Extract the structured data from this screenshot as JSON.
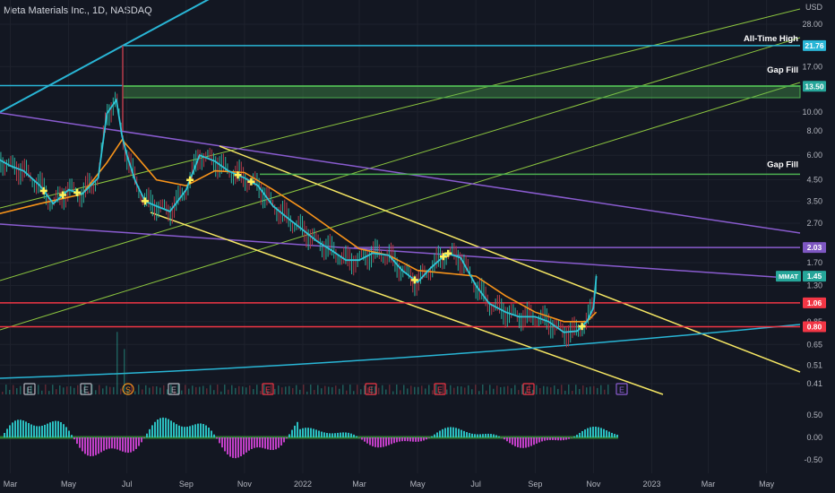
{
  "title": "Meta Materials Inc., 1D, NASDAQ",
  "colors": {
    "background": "#131722",
    "axis_text": "#b2b5be",
    "price_line": "#2ec4d6",
    "ma_line": "#f7931a",
    "candles_up": "#2db3a0",
    "candles_down": "#b73b4a",
    "yellow_channel": "#f5e663",
    "purple_line": "#8a5cd0",
    "green_fan": "#8cc63f",
    "cyan_line": "#29b6d6",
    "red_line": "#f23645",
    "hist_pos": "#2bbfc0",
    "hist_neg": "#c13fc7"
  },
  "chart_data": [
    {
      "type": "line",
      "title": "Meta Materials Inc., 1D, NASDAQ",
      "y_unit": "USD",
      "scale": "log",
      "ylim": [
        0.38,
        36
      ],
      "x_ticks": [
        "Mar",
        "May",
        "Jul",
        "Sep",
        "Nov",
        "2022",
        "Mar",
        "May",
        "Jul",
        "Sep",
        "Nov",
        "2023",
        "Mar",
        "May"
      ],
      "y_ticks": [
        28.0,
        17.0,
        10.0,
        8.0,
        6.0,
        4.5,
        3.5,
        2.7,
        1.7,
        1.3,
        0.85,
        0.65,
        0.51,
        0.41
      ],
      "x_labels_months": [
        "2021-03-01",
        "2021-05-01",
        "2021-07-01",
        "2021-09-01",
        "2021-11-01",
        "2022-01-01",
        "2022-03-01",
        "2022-05-01",
        "2022-07-01",
        "2022-09-01",
        "2022-11-01",
        "2023-01-01",
        "2023-03-01",
        "2023-05-01"
      ],
      "series": [
        {
          "x": [
            "2021-02-15",
            "2021-03-01",
            "2021-03-15",
            "2021-04-01",
            "2021-04-15",
            "2021-05-01",
            "2021-05-15",
            "2021-06-01",
            "2021-06-10",
            "2021-06-20",
            "2021-06-26",
            "2021-07-01",
            "2021-07-10",
            "2021-07-20",
            "2021-08-01",
            "2021-08-15",
            "2021-09-01",
            "2021-09-15",
            "2021-10-01",
            "2021-10-15",
            "2021-11-01",
            "2021-11-15",
            "2021-12-01",
            "2021-12-15",
            "2022-01-01",
            "2022-01-15",
            "2022-02-01",
            "2022-02-15",
            "2022-03-01",
            "2022-03-15",
            "2022-04-01",
            "2022-04-15",
            "2022-05-01",
            "2022-05-15",
            "2022-06-01",
            "2022-06-15",
            "2022-07-01",
            "2022-07-15",
            "2022-08-01",
            "2022-08-15",
            "2022-09-01",
            "2022-09-15",
            "2022-10-01",
            "2022-10-15",
            "2022-10-25",
            "2022-11-01",
            "2022-11-04"
          ],
          "values": [
            5.8,
            5.3,
            5.0,
            4.2,
            3.4,
            4.0,
            3.8,
            4.6,
            9.8,
            11.5,
            7.5,
            6.0,
            4.4,
            3.5,
            3.3,
            3.1,
            4.0,
            6.0,
            5.6,
            5.0,
            4.6,
            4.2,
            3.3,
            2.9,
            2.5,
            2.2,
            1.95,
            1.75,
            1.75,
            1.9,
            1.85,
            1.55,
            1.35,
            1.6,
            1.9,
            1.8,
            1.3,
            1.05,
            0.95,
            0.9,
            0.9,
            0.85,
            0.75,
            0.76,
            0.85,
            1.0,
            1.45
          ]
        },
        {
          "x": [
            "2021-02-15",
            "2021-04-01",
            "2021-05-15",
            "2021-06-10",
            "2021-06-26",
            "2021-07-10",
            "2021-08-01",
            "2021-09-01",
            "2021-10-01",
            "2021-11-01",
            "2021-12-01",
            "2022-01-01",
            "2022-02-01",
            "2022-03-01",
            "2022-04-01",
            "2022-05-01",
            "2022-06-01",
            "2022-07-01",
            "2022-08-01",
            "2022-09-01",
            "2022-10-01",
            "2022-10-25",
            "2022-11-04"
          ],
          "values": [
            3.0,
            3.4,
            3.8,
            5.5,
            7.2,
            6.0,
            4.5,
            4.2,
            5.0,
            4.9,
            4.0,
            3.2,
            2.5,
            2.0,
            1.85,
            1.55,
            1.5,
            1.45,
            1.15,
            0.95,
            0.85,
            0.85,
            0.95
          ]
        }
      ],
      "horizontal_levels": [
        {
          "label": "All-Time High",
          "value": 21.76,
          "color": "#29b6d6"
        },
        {
          "label": "Gap Fill",
          "value": 13.5,
          "color": "#4caf50"
        },
        {
          "label": "Gap Fill",
          "value": 4.8,
          "color": "#4caf50"
        },
        {
          "value": 2.03,
          "color": "#8a5cd0"
        },
        {
          "value": 1.06,
          "color": "#f23645"
        },
        {
          "value": 0.8,
          "color": "#f23645"
        }
      ],
      "price_tags": [
        {
          "text": "21.76",
          "bg": "#29b6d6"
        },
        {
          "text": "13.50",
          "bg": "#26a69a"
        },
        {
          "text": "2.03",
          "bg": "#7e57c2"
        },
        {
          "text": "1.45",
          "bg": "#26a69a",
          "ticker": "MMAT"
        },
        {
          "text": "1.06",
          "bg": "#f23645"
        },
        {
          "text": "0.80",
          "bg": "#f23645"
        }
      ],
      "annotations": [
        "All-Time High",
        "Gap Fill",
        "Gap Fill"
      ],
      "event_markers": [
        "E",
        "E",
        "S",
        "E",
        "E",
        "E",
        "E",
        "E",
        "E"
      ],
      "crosshair_markers": 11
    },
    {
      "type": "bar",
      "y_ticks": [
        0.5,
        0.0,
        -0.5
      ],
      "ylim": [
        -0.72,
        0.72
      ]
    }
  ]
}
